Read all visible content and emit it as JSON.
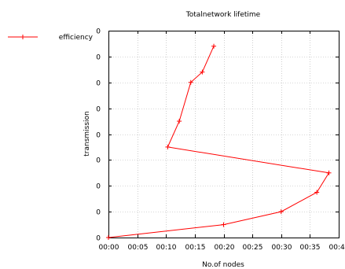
{
  "chart_data": {
    "type": "line",
    "title": "Totalnetwork lifetime",
    "xlabel": "No.of nodes",
    "ylabel": "transmission",
    "x_tick_labels": [
      "00:00",
      "00:05",
      "00:10",
      "00:15",
      "00:20",
      "00:25",
      "00:30",
      "00:35",
      "00:40"
    ],
    "y_tick_labels": [
      "0",
      "0",
      "0",
      "0",
      "0",
      "0",
      "0",
      "0",
      "0"
    ],
    "xlim": [
      0,
      40
    ],
    "ylim": [
      0,
      8
    ],
    "grid": true,
    "legend_position": "top-left",
    "series": [
      {
        "name": "efficiency",
        "color": "#ff0000",
        "marker": "plus",
        "points": [
          {
            "x": 0,
            "y": 0
          },
          {
            "x": 20,
            "y": 0.5
          },
          {
            "x": 30,
            "y": 1.0
          },
          {
            "x": 36.2,
            "y": 1.75
          },
          {
            "x": 38.3,
            "y": 2.5
          },
          {
            "x": 10.3,
            "y": 3.5
          },
          {
            "x": 12.3,
            "y": 4.5
          },
          {
            "x": 14.3,
            "y": 6.0
          },
          {
            "x": 16.3,
            "y": 6.4
          },
          {
            "x": 18.3,
            "y": 7.4
          }
        ]
      }
    ]
  }
}
